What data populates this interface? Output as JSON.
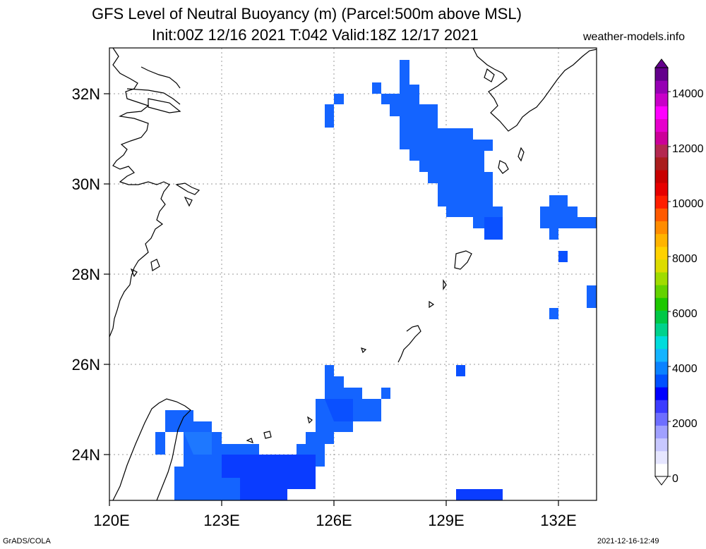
{
  "title_line1": "GFS Level of Neutral Buoyancy (m) (Parcel:500m above MSL)",
  "title_line2": "Init:00Z 12/16 2021 T:042 Valid:18Z 12/17 2021",
  "site": "weather-models.info",
  "footer_left": "GrADS/COLA",
  "footer_right": "2021-12-16-12:49",
  "map": {
    "lon_labels": [
      "120E",
      "123E",
      "126E",
      "129E",
      "132E"
    ],
    "lat_labels": [
      "32N",
      "30N",
      "28N",
      "26N",
      "24N"
    ],
    "lon_range": [
      120,
      133
    ],
    "lat_range": [
      23,
      33
    ]
  },
  "colorbar": {
    "labels": [
      "0",
      "2000",
      "4000",
      "6000",
      "8000",
      "10000",
      "12000",
      "14000"
    ],
    "colors": [
      "#ffffff",
      "#e6e6ff",
      "#c8c8ff",
      "#a0a0ff",
      "#6e6eff",
      "#3c3cff",
      "#0000ff",
      "#0050ff",
      "#0a82ff",
      "#14b4ff",
      "#00dcdc",
      "#00d28c",
      "#00c846",
      "#1ec800",
      "#64d200",
      "#a0dc00",
      "#dcdc00",
      "#ffd200",
      "#ffb400",
      "#ff8c00",
      "#ff5a00",
      "#ff1e00",
      "#e60000",
      "#c80000",
      "#aa1e1e",
      "#b42850",
      "#cc0099",
      "#e600cc",
      "#ff00ff",
      "#c800c8",
      "#9600b4",
      "#64008c"
    ]
  }
}
